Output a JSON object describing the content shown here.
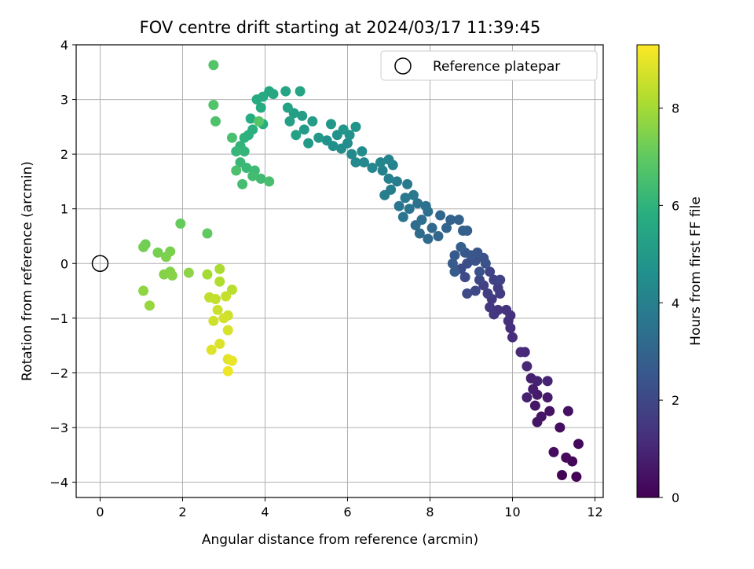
{
  "chart_data": {
    "type": "scatter",
    "title": "FOV centre drift starting at 2024/03/17 11:39:45",
    "xlabel": "Angular distance from reference (arcmin)",
    "ylabel": "Rotation from reference (arcmin)",
    "xlim": [
      -0.58,
      12.2
    ],
    "ylim": [
      -4.28,
      4.0
    ],
    "xticks": [
      0,
      2,
      4,
      6,
      8,
      10,
      12
    ],
    "yticks": [
      -4,
      -3,
      -2,
      -1,
      0,
      1,
      2,
      3,
      4
    ],
    "grid": true,
    "legend": {
      "position": "top-right",
      "entries": [
        "Reference platepar"
      ]
    },
    "reference_point": {
      "x": 0,
      "y": 0,
      "label": "Reference platepar"
    },
    "colorbar": {
      "label": "Hours from first FF file",
      "colormap": "viridis",
      "range": [
        0,
        9.3
      ],
      "ticks": [
        0,
        2,
        4,
        6,
        8
      ]
    },
    "series": [
      {
        "color_by": "hours",
        "points": [
          [
            11.55,
            -3.9,
            0.05
          ],
          [
            11.2,
            -3.87,
            0.1
          ],
          [
            11.45,
            -3.62,
            0.15
          ],
          [
            11.6,
            -3.3,
            0.2
          ],
          [
            11.3,
            -3.55,
            0.25
          ],
          [
            11.0,
            -3.45,
            0.3
          ],
          [
            11.15,
            -3.0,
            0.35
          ],
          [
            11.35,
            -2.7,
            0.4
          ],
          [
            10.9,
            -2.7,
            0.45
          ],
          [
            10.7,
            -2.8,
            0.5
          ],
          [
            10.6,
            -2.9,
            0.55
          ],
          [
            10.55,
            -2.6,
            0.6
          ],
          [
            10.6,
            -2.4,
            0.65
          ],
          [
            10.85,
            -2.45,
            0.7
          ],
          [
            10.5,
            -2.3,
            0.75
          ],
          [
            10.45,
            -2.1,
            0.8
          ],
          [
            10.35,
            -2.45,
            0.85
          ],
          [
            10.6,
            -2.15,
            0.9
          ],
          [
            10.85,
            -2.15,
            0.95
          ],
          [
            10.35,
            -1.88,
            1.0
          ],
          [
            10.3,
            -1.62,
            1.05
          ],
          [
            10.2,
            -1.62,
            1.1
          ],
          [
            10.0,
            -1.35,
            1.15
          ],
          [
            9.95,
            -1.18,
            1.2
          ],
          [
            9.9,
            -1.05,
            1.25
          ],
          [
            9.95,
            -0.95,
            1.3
          ],
          [
            9.85,
            -0.85,
            1.35
          ],
          [
            9.65,
            -0.85,
            1.4
          ],
          [
            9.55,
            -0.93,
            1.45
          ],
          [
            9.45,
            -0.8,
            1.5
          ],
          [
            9.5,
            -0.65,
            1.55
          ],
          [
            9.7,
            -0.55,
            1.6
          ],
          [
            9.65,
            -0.45,
            1.65
          ],
          [
            9.4,
            -0.55,
            1.7
          ],
          [
            9.3,
            -0.4,
            1.75
          ],
          [
            9.55,
            -0.3,
            1.8
          ],
          [
            9.7,
            -0.3,
            1.85
          ],
          [
            9.45,
            -0.15,
            1.9
          ],
          [
            9.2,
            -0.3,
            1.95
          ],
          [
            9.1,
            -0.5,
            2.0
          ],
          [
            8.9,
            -0.55,
            2.05
          ],
          [
            8.85,
            -0.25,
            2.1
          ],
          [
            8.75,
            -0.1,
            2.15
          ],
          [
            8.9,
            0.0,
            2.2
          ],
          [
            9.1,
            0.05,
            2.25
          ],
          [
            9.2,
            -0.15,
            2.3
          ],
          [
            9.35,
            0.0,
            2.35
          ],
          [
            9.3,
            0.1,
            2.4
          ],
          [
            9.15,
            0.2,
            2.45
          ],
          [
            9.0,
            0.15,
            2.5
          ],
          [
            8.85,
            0.2,
            2.55
          ],
          [
            8.6,
            0.15,
            2.6
          ],
          [
            8.55,
            0.0,
            2.65
          ],
          [
            8.6,
            -0.15,
            2.7
          ],
          [
            8.75,
            0.3,
            2.75
          ],
          [
            8.9,
            0.6,
            2.8
          ],
          [
            8.8,
            0.6,
            2.85
          ],
          [
            8.7,
            0.8,
            2.9
          ],
          [
            8.5,
            0.8,
            2.95
          ],
          [
            8.4,
            0.65,
            3.0
          ],
          [
            8.2,
            0.5,
            3.05
          ],
          [
            8.25,
            0.88,
            3.1
          ],
          [
            8.05,
            0.65,
            3.15
          ],
          [
            7.95,
            0.45,
            3.2
          ],
          [
            7.75,
            0.55,
            3.25
          ],
          [
            7.65,
            0.7,
            3.3
          ],
          [
            7.8,
            0.8,
            3.35
          ],
          [
            7.95,
            0.95,
            3.4
          ],
          [
            7.9,
            1.05,
            3.45
          ],
          [
            7.7,
            1.1,
            3.5
          ],
          [
            7.5,
            1.0,
            3.55
          ],
          [
            7.35,
            0.85,
            3.6
          ],
          [
            7.25,
            1.05,
            3.65
          ],
          [
            7.4,
            1.2,
            3.7
          ],
          [
            7.6,
            1.25,
            3.75
          ],
          [
            7.45,
            1.45,
            3.8
          ],
          [
            7.2,
            1.5,
            3.85
          ],
          [
            7.05,
            1.35,
            3.9
          ],
          [
            6.9,
            1.25,
            3.95
          ],
          [
            7.0,
            1.55,
            4.0
          ],
          [
            6.85,
            1.7,
            4.05
          ],
          [
            7.1,
            1.8,
            4.1
          ],
          [
            7.0,
            1.9,
            4.15
          ],
          [
            6.8,
            1.85,
            4.2
          ],
          [
            6.6,
            1.75,
            4.25
          ],
          [
            6.4,
            1.85,
            4.3
          ],
          [
            6.2,
            1.85,
            4.35
          ],
          [
            6.1,
            2.0,
            4.4
          ],
          [
            6.35,
            2.05,
            4.45
          ],
          [
            6.0,
            2.2,
            4.5
          ],
          [
            5.85,
            2.1,
            4.55
          ],
          [
            5.65,
            2.15,
            4.6
          ],
          [
            5.5,
            2.25,
            4.65
          ],
          [
            5.75,
            2.35,
            4.7
          ],
          [
            6.05,
            2.35,
            4.75
          ],
          [
            6.2,
            2.5,
            4.8
          ],
          [
            5.9,
            2.45,
            4.85
          ],
          [
            5.6,
            2.55,
            4.9
          ],
          [
            5.3,
            2.3,
            4.95
          ],
          [
            5.05,
            2.2,
            5.0
          ],
          [
            4.95,
            2.45,
            5.05
          ],
          [
            5.15,
            2.6,
            5.1
          ],
          [
            4.9,
            2.7,
            5.15
          ],
          [
            4.7,
            2.75,
            5.2
          ],
          [
            4.6,
            2.6,
            5.25
          ],
          [
            4.75,
            2.35,
            5.3
          ],
          [
            4.55,
            2.85,
            5.35
          ],
          [
            4.85,
            3.15,
            5.4
          ],
          [
            4.5,
            3.15,
            5.45
          ],
          [
            4.2,
            3.1,
            5.5
          ],
          [
            4.1,
            3.15,
            5.55
          ],
          [
            3.95,
            3.05,
            5.6
          ],
          [
            3.8,
            3.0,
            5.65
          ],
          [
            3.9,
            2.85,
            5.7
          ],
          [
            3.65,
            2.65,
            5.75
          ],
          [
            3.95,
            2.55,
            5.8
          ],
          [
            3.7,
            2.45,
            5.85
          ],
          [
            3.6,
            2.35,
            5.9
          ],
          [
            3.5,
            2.3,
            5.95
          ],
          [
            3.4,
            2.15,
            6.0
          ],
          [
            3.5,
            2.05,
            6.1
          ],
          [
            3.3,
            2.05,
            6.15
          ],
          [
            3.4,
            1.85,
            6.2
          ],
          [
            3.55,
            1.75,
            6.25
          ],
          [
            3.75,
            1.7,
            6.3
          ],
          [
            3.9,
            1.55,
            6.35
          ],
          [
            3.7,
            1.6,
            6.4
          ],
          [
            3.45,
            1.45,
            6.45
          ],
          [
            4.1,
            1.5,
            6.5
          ],
          [
            3.2,
            2.3,
            6.55
          ],
          [
            3.3,
            1.7,
            6.6
          ],
          [
            2.8,
            2.6,
            6.65
          ],
          [
            2.75,
            2.9,
            6.7
          ],
          [
            2.75,
            3.63,
            6.75
          ],
          [
            3.85,
            2.6,
            6.8
          ],
          [
            2.6,
            0.55,
            7.0
          ],
          [
            1.95,
            0.73,
            7.1
          ],
          [
            1.1,
            0.35,
            7.2
          ],
          [
            1.05,
            0.3,
            7.3
          ],
          [
            1.4,
            0.2,
            7.35
          ],
          [
            1.7,
            0.22,
            7.4
          ],
          [
            1.6,
            0.12,
            7.45
          ],
          [
            1.7,
            -0.15,
            7.5
          ],
          [
            1.55,
            -0.2,
            7.55
          ],
          [
            1.75,
            -0.22,
            7.6
          ],
          [
            2.15,
            -0.17,
            7.65
          ],
          [
            1.05,
            -0.5,
            7.7
          ],
          [
            1.2,
            -0.77,
            7.8
          ],
          [
            2.6,
            -0.2,
            8.0
          ],
          [
            2.9,
            -0.1,
            8.1
          ],
          [
            2.9,
            -0.33,
            8.2
          ],
          [
            3.2,
            -0.48,
            8.3
          ],
          [
            2.65,
            -0.62,
            8.4
          ],
          [
            2.8,
            -0.65,
            8.45
          ],
          [
            3.05,
            -0.6,
            8.5
          ],
          [
            2.85,
            -0.85,
            8.55
          ],
          [
            3.1,
            -0.95,
            8.6
          ],
          [
            2.75,
            -1.05,
            8.65
          ],
          [
            3.0,
            -1.0,
            8.7
          ],
          [
            3.1,
            -1.22,
            8.75
          ],
          [
            2.9,
            -1.47,
            8.8
          ],
          [
            2.7,
            -1.58,
            8.85
          ],
          [
            3.1,
            -1.75,
            8.9
          ],
          [
            3.2,
            -1.78,
            9.0
          ],
          [
            3.1,
            -1.97,
            9.1
          ]
        ]
      }
    ]
  }
}
